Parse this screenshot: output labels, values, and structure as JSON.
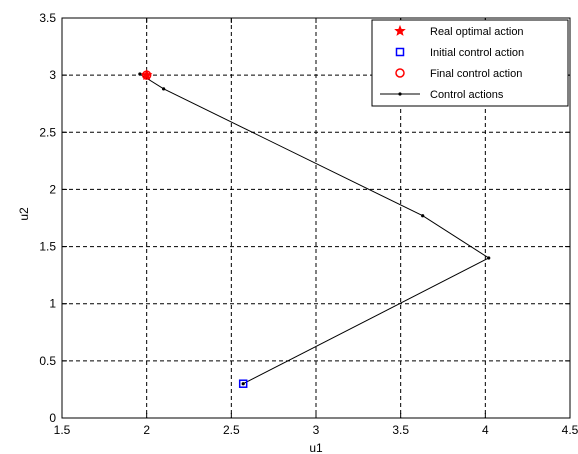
{
  "chart_data": {
    "type": "line",
    "title": "",
    "xlabel": "u1",
    "ylabel": "u2",
    "xlim": [
      1.5,
      4.5
    ],
    "ylim": [
      0,
      3.5
    ],
    "xticks": [
      "1.5",
      "2",
      "2.5",
      "3",
      "3.5",
      "4",
      "4.5"
    ],
    "yticks": [
      "0",
      "0.5",
      "1",
      "1.5",
      "2",
      "2.5",
      "3",
      "3.5"
    ],
    "grid": true,
    "legend_position": "top-right",
    "series": [
      {
        "name": "Real optimal action",
        "marker": "star",
        "color": "#ff0000",
        "x": [
          2.0
        ],
        "y": [
          3.0
        ]
      },
      {
        "name": "Initial control action",
        "marker": "square",
        "color": "#0000ff",
        "x": [
          2.57
        ],
        "y": [
          0.3
        ]
      },
      {
        "name": "Final control action",
        "marker": "circle",
        "color": "#ff0000",
        "x": [
          2.0
        ],
        "y": [
          3.0
        ]
      },
      {
        "name": "Control actions",
        "marker": "dot",
        "color": "#000000",
        "x": [
          2.57,
          4.02,
          3.63,
          2.1,
          1.96
        ],
        "y": [
          0.3,
          1.4,
          1.77,
          2.88,
          3.01
        ]
      }
    ]
  }
}
